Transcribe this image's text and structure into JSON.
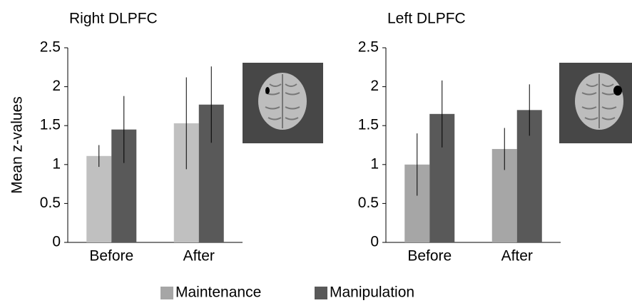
{
  "chart_data": [
    {
      "type": "bar",
      "title": "Right DLPFC",
      "y_label": "Mean z-values",
      "categories": [
        "Before",
        "After"
      ],
      "series": [
        {
          "color": "#c0c0c0",
          "values": [
            1.11,
            1.53
          ],
          "errors": [
            0.14,
            0.59
          ]
        },
        {
          "color": "#595959",
          "values": [
            1.45,
            1.77
          ],
          "errors": [
            0.43,
            0.49
          ]
        }
      ],
      "ylim": [
        0,
        2.5
      ],
      "yticks": [
        0,
        0.5,
        1,
        1.5,
        2,
        2.5
      ]
    },
    {
      "type": "bar",
      "title": "Left DLPFC",
      "categories": [
        "Before",
        "After"
      ],
      "series": [
        {
          "color": "#a6a6a6",
          "values": [
            1.0,
            1.2
          ],
          "errors": [
            0.4,
            0.27
          ]
        },
        {
          "color": "#595959",
          "values": [
            1.65,
            1.7
          ],
          "errors": [
            0.43,
            0.33
          ]
        }
      ],
      "ylim": [
        0,
        2.5
      ],
      "yticks": [
        0,
        0.5,
        1,
        1.5,
        2,
        2.5
      ]
    }
  ],
  "legend": [
    {
      "name": "Maintenance",
      "color": "#a6a6a6"
    },
    {
      "name": "Manipulation",
      "color": "#595959"
    }
  ]
}
